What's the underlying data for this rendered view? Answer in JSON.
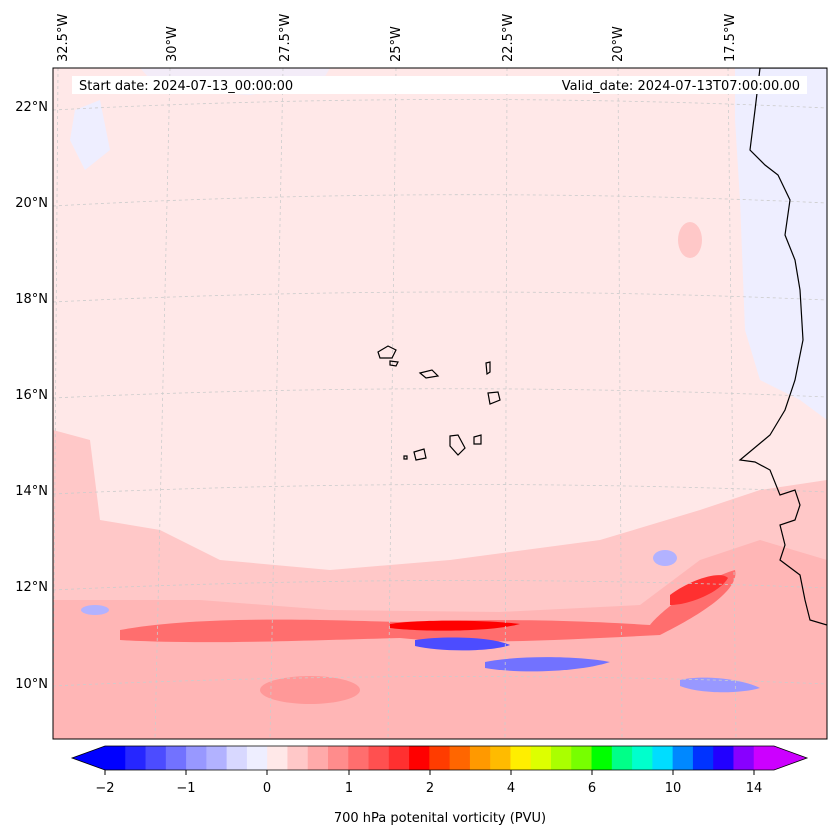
{
  "header": {
    "start_date": "Start date: 2024-07-13_00:00:00",
    "valid_date": "Valid_date: 2024-07-13T07:00:00.00"
  },
  "map": {
    "lon_labels": [
      "32.5°W",
      "30°W",
      "27.5°W",
      "25°W",
      "22.5°W",
      "20°W",
      "17.5°W"
    ],
    "lat_labels": [
      "22°N",
      "20°N",
      "18°N",
      "16°N",
      "14°N",
      "12°N",
      "10°N"
    ],
    "gridlines": "dashed"
  },
  "colorbar": {
    "title": "700 hPa potenital vorticity (PVU)",
    "tick_labels": [
      "−2",
      "−1",
      "0",
      "1",
      "2",
      "4",
      "6",
      "10",
      "14"
    ],
    "colors": [
      "#0000ff",
      "#2626ff",
      "#4c4cff",
      "#7272ff",
      "#9898ff",
      "#b2b2ff",
      "#d8d8ff",
      "#eeeeff",
      "#ffe8e8",
      "#ffc8c8",
      "#ffaaaa",
      "#ff8c8c",
      "#ff6e6e",
      "#ff5050",
      "#ff3030",
      "#ff0000",
      "#ff3c00",
      "#ff6600",
      "#ff9900",
      "#ffbb00",
      "#ffee00",
      "#ddff00",
      "#aaff00",
      "#77ff00",
      "#00ff00",
      "#00ff88",
      "#00ffcc",
      "#00ddff",
      "#0088ff",
      "#0033ff",
      "#2200ff",
      "#8800ff",
      "#cc00ff"
    ],
    "under_color": "#0000ff",
    "over_color": "#cc00ff"
  }
}
